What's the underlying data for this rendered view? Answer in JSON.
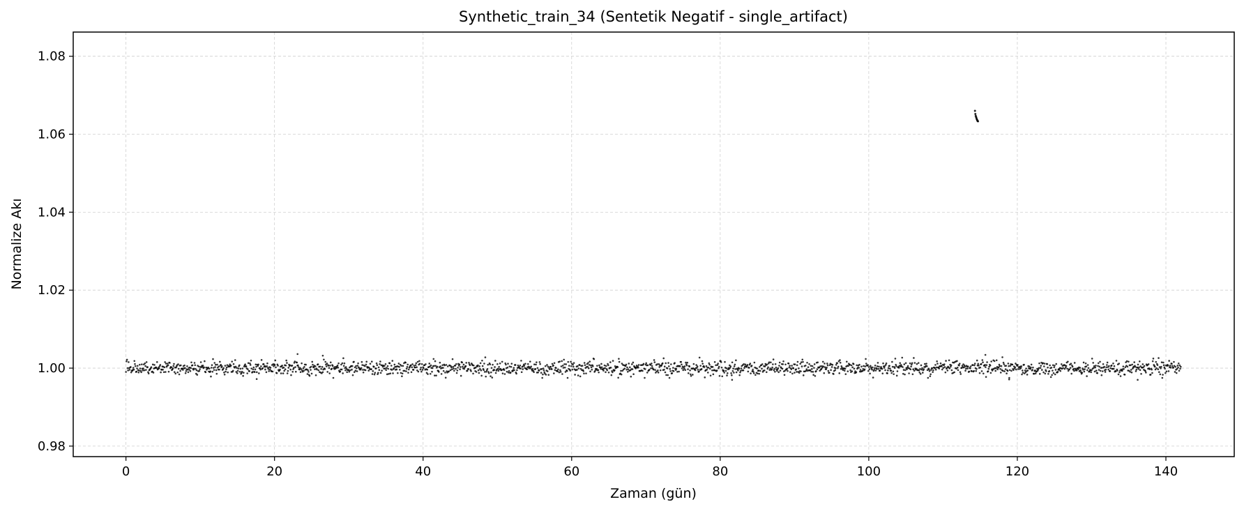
{
  "chart_data": {
    "type": "scatter",
    "title": "Synthetic_train_34 (Sentetik Negatif - single_artifact)",
    "xlabel": "Zaman (gün)",
    "ylabel": "Normalize Akı",
    "xlim": [
      -7.1,
      149.2
    ],
    "ylim": [
      0.9773,
      1.0862
    ],
    "x_ticks": [
      0,
      20,
      40,
      60,
      80,
      100,
      120,
      140
    ],
    "y_ticks": [
      0.98,
      1.0,
      1.02,
      1.04,
      1.06,
      1.08
    ],
    "x_tick_labels": [
      "0",
      "20",
      "40",
      "60",
      "80",
      "100",
      "120",
      "140"
    ],
    "y_tick_labels": [
      "0.98",
      "1.00",
      "1.02",
      "1.04",
      "1.06",
      "1.08"
    ],
    "grid": true,
    "point_color": "#000000",
    "series": [
      {
        "baseline": {
          "x_start": 0.0,
          "x_end": 142.0,
          "n_points": 2000,
          "center": 1.0,
          "noise_sd": 0.0009,
          "extreme_points": [
            {
              "x": 23.1,
              "y": 1.0036
            },
            {
              "x": 26.5,
              "y": 1.0032
            },
            {
              "x": 115.7,
              "y": 1.0034
            },
            {
              "x": 17.6,
              "y": 0.9972
            },
            {
              "x": 81.6,
              "y": 0.997
            },
            {
              "x": 118.9,
              "y": 0.9971
            },
            {
              "x": 136.2,
              "y": 0.997
            }
          ]
        },
        "artifact": {
          "points": [
            {
              "x": 114.3,
              "y": 1.066
            },
            {
              "x": 114.35,
              "y": 1.0652
            },
            {
              "x": 114.4,
              "y": 1.0647
            },
            {
              "x": 114.45,
              "y": 1.0644
            },
            {
              "x": 114.5,
              "y": 1.0641
            },
            {
              "x": 114.55,
              "y": 1.0638
            },
            {
              "x": 114.6,
              "y": 1.0636
            },
            {
              "x": 114.65,
              "y": 1.0634
            },
            {
              "x": 114.7,
              "y": 1.0633
            }
          ]
        }
      }
    ]
  }
}
